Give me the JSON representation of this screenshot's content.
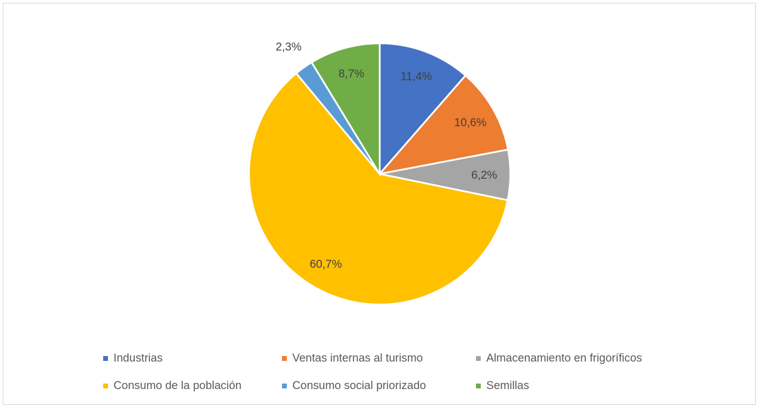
{
  "chart_data": {
    "type": "pie",
    "title": "",
    "start_angle": "top, clockwise",
    "categories": [
      "Industrias",
      "Ventas internas al turismo",
      "Almacenamiento en frigoríficos",
      "Consumo de la población",
      "Consumo social priorizado",
      "Semillas"
    ],
    "values": [
      11.4,
      10.6,
      6.2,
      60.7,
      2.3,
      8.7
    ],
    "labels": [
      "11,4%",
      "10,6%",
      "6,2%",
      "60,7%",
      "2,3%",
      "8,7%"
    ],
    "colors": [
      "#4472c4",
      "#ed7d31",
      "#a5a5a5",
      "#ffc000",
      "#5b9bd5",
      "#70ad47"
    ],
    "legend_position": "bottom"
  }
}
